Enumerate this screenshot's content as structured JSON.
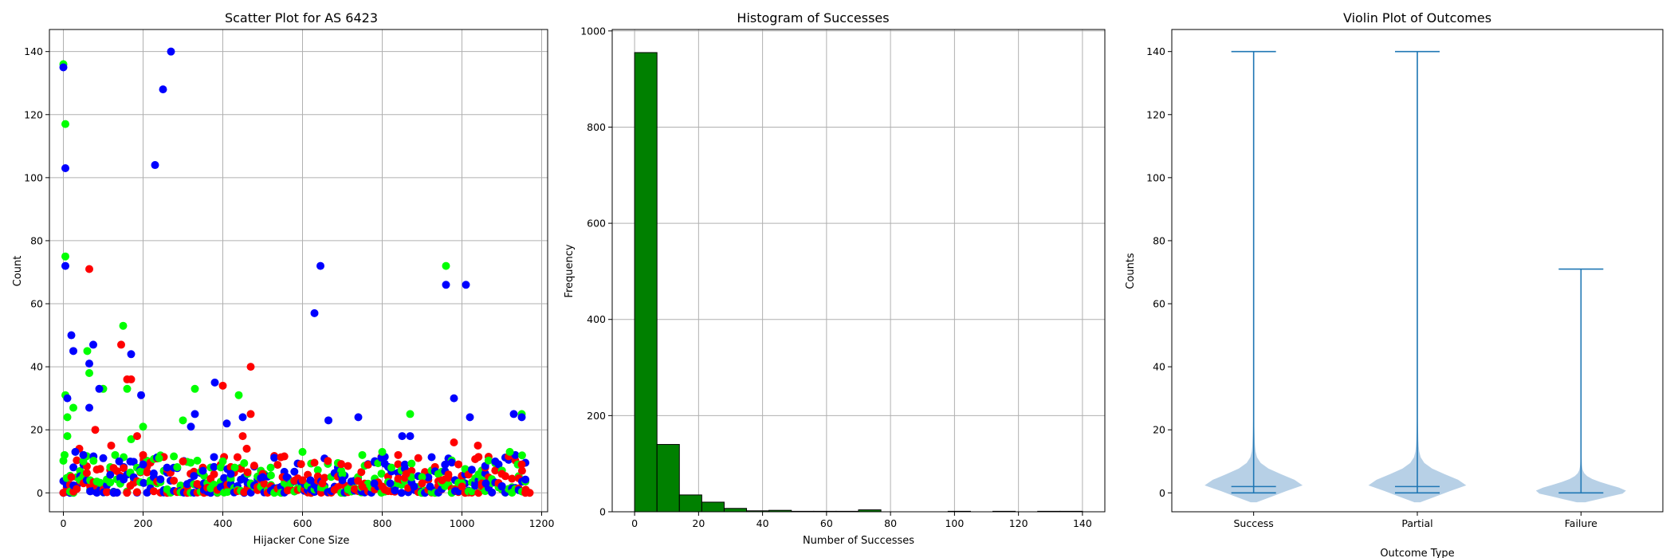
{
  "chart_data": [
    {
      "type": "scatter",
      "title": "Scatter Plot for AS 6423",
      "xlabel": "Hijacker Cone Size",
      "ylabel": "Count",
      "xlim": [
        -35,
        1215
      ],
      "ylim": [
        -6,
        147
      ],
      "xticks": [
        0,
        200,
        400,
        600,
        800,
        1000,
        1200
      ],
      "yticks": [
        0,
        20,
        40,
        60,
        80,
        100,
        120,
        140
      ],
      "grid": true,
      "series": [
        {
          "color": "#00ff00",
          "points": [
            [
              0,
              136
            ],
            [
              5,
              117
            ],
            [
              5,
              75
            ],
            [
              5,
              31
            ],
            [
              10,
              24
            ],
            [
              10,
              18
            ],
            [
              3,
              12
            ],
            [
              25,
              27
            ],
            [
              60,
              45
            ],
            [
              65,
              38
            ],
            [
              130,
              12
            ],
            [
              150,
              53
            ],
            [
              160,
              33
            ],
            [
              170,
              17
            ],
            [
              240,
              11
            ],
            [
              300,
              23
            ],
            [
              330,
              33
            ],
            [
              430,
              8
            ],
            [
              440,
              31
            ],
            [
              600,
              13
            ],
            [
              750,
              12
            ],
            [
              800,
              13
            ],
            [
              870,
              25
            ],
            [
              960,
              72
            ],
            [
              1000,
              3
            ],
            [
              1120,
              13
            ],
            [
              1150,
              25
            ],
            [
              1140,
              9
            ],
            [
              50,
              10
            ],
            [
              100,
              33
            ],
            [
              200,
              21
            ],
            [
              400,
              10
            ],
            [
              520,
              8
            ],
            [
              700,
              6
            ],
            [
              900,
              5
            ],
            [
              1050,
              4
            ]
          ]
        },
        {
          "color": "#ff0000",
          "points": [
            [
              65,
              71
            ],
            [
              145,
              47
            ],
            [
              160,
              36
            ],
            [
              170,
              36
            ],
            [
              185,
              18
            ],
            [
              400,
              34
            ],
            [
              470,
              40
            ],
            [
              470,
              25
            ],
            [
              450,
              18
            ],
            [
              460,
              14
            ],
            [
              840,
              12
            ],
            [
              860,
              6
            ],
            [
              980,
              16
            ],
            [
              1040,
              15
            ],
            [
              1100,
              6
            ],
            [
              1150,
              9
            ],
            [
              1160,
              1
            ],
            [
              80,
              20
            ],
            [
              120,
              15
            ],
            [
              200,
              12
            ],
            [
              300,
              10
            ],
            [
              350,
              8
            ],
            [
              500,
              6
            ],
            [
              550,
              5
            ],
            [
              600,
              4
            ],
            [
              650,
              3
            ],
            [
              700,
              3
            ],
            [
              750,
              2
            ],
            [
              800,
              2
            ],
            [
              900,
              3
            ],
            [
              950,
              4
            ],
            [
              1000,
              2
            ],
            [
              1050,
              3
            ],
            [
              1170,
              0
            ],
            [
              20,
              5
            ],
            [
              40,
              14
            ]
          ]
        },
        {
          "color": "#0000ff",
          "points": [
            [
              0,
              135
            ],
            [
              5,
              103
            ],
            [
              5,
              72
            ],
            [
              10,
              30
            ],
            [
              20,
              50
            ],
            [
              25,
              45
            ],
            [
              75,
              47
            ],
            [
              65,
              41
            ],
            [
              65,
              27
            ],
            [
              90,
              33
            ],
            [
              170,
              44
            ],
            [
              195,
              31
            ],
            [
              230,
              104
            ],
            [
              250,
              128
            ],
            [
              270,
              140
            ],
            [
              320,
              21
            ],
            [
              330,
              25
            ],
            [
              380,
              35
            ],
            [
              410,
              22
            ],
            [
              450,
              24
            ],
            [
              630,
              57
            ],
            [
              645,
              72
            ],
            [
              665,
              23
            ],
            [
              740,
              24
            ],
            [
              850,
              18
            ],
            [
              870,
              18
            ],
            [
              960,
              66
            ],
            [
              980,
              30
            ],
            [
              1010,
              66
            ],
            [
              1020,
              24
            ],
            [
              1130,
              25
            ],
            [
              1150,
              24
            ],
            [
              30,
              13
            ],
            [
              50,
              12
            ],
            [
              100,
              11
            ],
            [
              140,
              10
            ],
            [
              200,
              9
            ],
            [
              260,
              8
            ],
            [
              350,
              7
            ],
            [
              420,
              6
            ],
            [
              500,
              5
            ],
            [
              560,
              5
            ],
            [
              620,
              4
            ],
            [
              700,
              4
            ],
            [
              780,
              3
            ],
            [
              820,
              3
            ],
            [
              880,
              2
            ],
            [
              920,
              2
            ],
            [
              1060,
              3
            ],
            [
              1100,
              2
            ]
          ]
        }
      ],
      "baseline_band": {
        "x_range": [
          0,
          1160
        ],
        "y_range": [
          0,
          12
        ]
      }
    },
    {
      "type": "bar",
      "title": "Histogram of Successes",
      "xlabel": "Number of Successes",
      "ylabel": "Frequency",
      "xlim": [
        -7,
        147
      ],
      "ylim": [
        0,
        1003
      ],
      "xticks": [
        0,
        20,
        40,
        60,
        80,
        100,
        120,
        140
      ],
      "yticks": [
        0,
        200,
        400,
        600,
        800,
        1000
      ],
      "grid": true,
      "bar_color": "#008000",
      "bin_edges": [
        0,
        7,
        14,
        21,
        28,
        35,
        42,
        49,
        56,
        63,
        70,
        77,
        84,
        91,
        98,
        105,
        112,
        119,
        126,
        133,
        140
      ],
      "values": [
        955,
        140,
        35,
        20,
        7,
        2,
        3,
        1,
        1,
        1,
        4,
        0,
        0,
        0,
        1,
        0,
        1,
        0,
        1,
        1
      ]
    },
    {
      "type": "violin",
      "title": "Violin Plot of Outcomes",
      "xlabel": "Outcome Type",
      "ylabel": "Counts",
      "categories": [
        "Success",
        "Partial",
        "Failure"
      ],
      "ylim": [
        -6,
        147
      ],
      "yticks": [
        0,
        20,
        40,
        60,
        80,
        100,
        120,
        140
      ],
      "grid": false,
      "line_color": "#1f77b4",
      "body_color": "#aac8e2",
      "series": [
        {
          "min": 0,
          "max": 140,
          "mean": 2
        },
        {
          "min": 0,
          "max": 140,
          "mean": 2
        },
        {
          "min": 0,
          "max": 71,
          "mean": 0
        }
      ]
    }
  ]
}
